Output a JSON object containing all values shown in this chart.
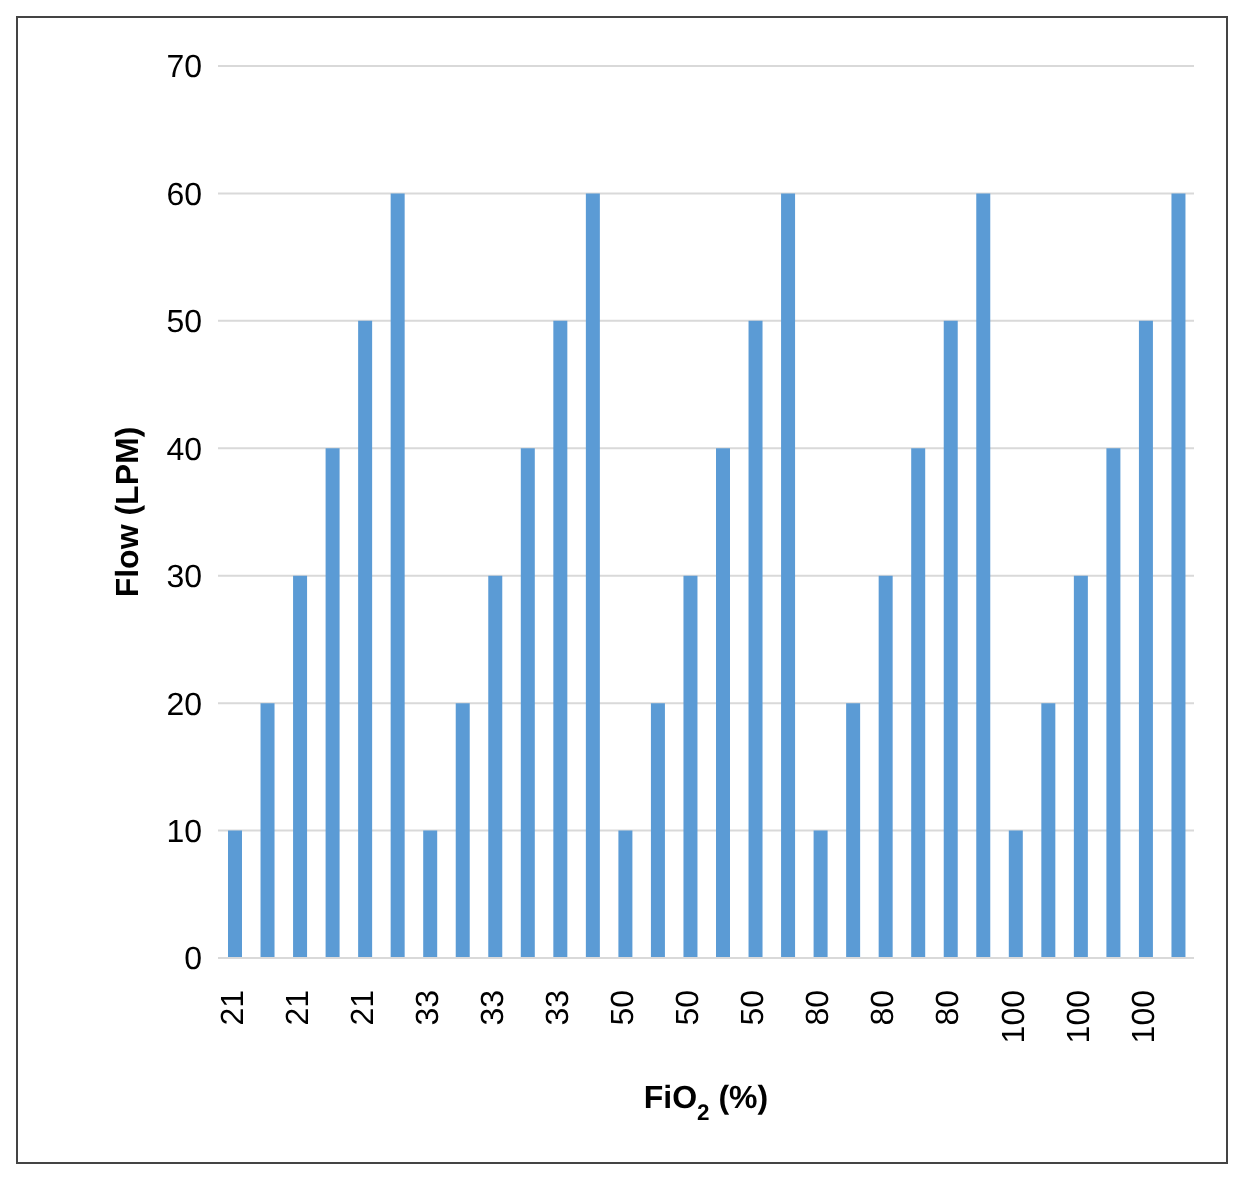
{
  "chart_data": {
    "type": "bar",
    "xlabel": "FiO$_{2}$ (%)",
    "ylabel": "Flow (LPM)",
    "categories": [
      "21",
      null,
      "21",
      null,
      "21",
      null,
      "33",
      null,
      "33",
      null,
      "33",
      null,
      "50",
      null,
      "50",
      null,
      "50",
      null,
      "80",
      null,
      "80",
      null,
      "80",
      null,
      "100",
      null,
      "100",
      null,
      "100",
      null
    ],
    "values": [
      10,
      20,
      30,
      40,
      50,
      60,
      10,
      20,
      30,
      40,
      50,
      60,
      10,
      20,
      30,
      40,
      50,
      60,
      10,
      20,
      30,
      40,
      50,
      60,
      10,
      20,
      30,
      40,
      50,
      60
    ],
    "color": "#5b9bd5",
    "ylim": [
      0,
      70
    ],
    "yticks": [
      0,
      10,
      20,
      30,
      40,
      50,
      60,
      70
    ],
    "grid": "y",
    "legend": false
  }
}
